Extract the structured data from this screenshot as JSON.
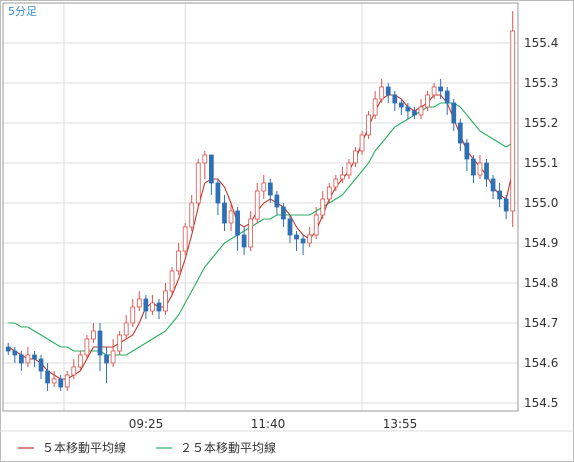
{
  "chart_data": {
    "type": "candlestick",
    "timeframe_label": "5分足",
    "x_tick_labels": [
      "09:25",
      "11:40",
      "13:55"
    ],
    "y_tick_labels": [
      "154.5",
      "154.6",
      "154.7",
      "154.8",
      "154.9",
      "155.0",
      "155.1",
      "155.2",
      "155.3",
      "155.4"
    ],
    "ylim": [
      154.48,
      155.5
    ],
    "grid": true,
    "legend_position": "bottom-left",
    "colors": {
      "up_candle": "#d9534f",
      "down_candle": "#2f6fb3",
      "ma5": "#c0392b",
      "ma25": "#27ae60",
      "grid": "#dddddd",
      "axis": "#999999"
    },
    "series": [
      {
        "name": "５本移動平均線",
        "type": "line",
        "color": "#c0392b"
      },
      {
        "name": "２５本移動平均線",
        "type": "line",
        "color": "#27ae60"
      }
    ],
    "candles": [
      [
        154.64,
        154.63,
        154.65,
        154.62
      ],
      [
        154.63,
        154.62,
        154.64,
        154.6
      ],
      [
        154.62,
        154.6,
        154.63,
        154.58
      ],
      [
        154.6,
        154.62,
        154.64,
        154.59
      ],
      [
        154.62,
        154.61,
        154.63,
        154.59
      ],
      [
        154.61,
        154.58,
        154.62,
        154.56
      ],
      [
        154.58,
        154.55,
        154.6,
        154.53
      ],
      [
        154.55,
        154.56,
        154.58,
        154.54
      ],
      [
        154.56,
        154.54,
        154.57,
        154.53
      ],
      [
        154.54,
        154.57,
        154.58,
        154.53
      ],
      [
        154.57,
        154.59,
        154.61,
        154.56
      ],
      [
        154.59,
        154.62,
        154.63,
        154.58
      ],
      [
        154.62,
        154.66,
        154.67,
        154.61
      ],
      [
        154.66,
        154.68,
        154.7,
        154.65
      ],
      [
        154.68,
        154.62,
        154.7,
        154.58
      ],
      [
        154.62,
        154.6,
        154.64,
        154.55
      ],
      [
        154.6,
        154.63,
        154.66,
        154.59
      ],
      [
        154.63,
        154.67,
        154.68,
        154.62
      ],
      [
        154.67,
        154.7,
        154.72,
        154.66
      ],
      [
        154.7,
        154.74,
        154.76,
        154.69
      ],
      [
        154.74,
        154.76,
        154.78,
        154.73
      ],
      [
        154.76,
        154.73,
        154.77,
        154.71
      ],
      [
        154.73,
        154.75,
        154.77,
        154.72
      ],
      [
        154.75,
        154.73,
        154.76,
        154.71
      ],
      [
        154.73,
        154.78,
        154.8,
        154.72
      ],
      [
        154.78,
        154.83,
        154.84,
        154.77
      ],
      [
        154.83,
        154.88,
        154.9,
        154.82
      ],
      [
        154.88,
        154.94,
        154.95,
        154.87
      ],
      [
        154.94,
        155.0,
        155.02,
        154.93
      ],
      [
        155.0,
        155.1,
        155.11,
        154.99
      ],
      [
        155.1,
        155.12,
        155.13,
        155.06
      ],
      [
        155.12,
        155.05,
        155.12,
        155.02
      ],
      [
        155.05,
        155.0,
        155.06,
        154.97
      ],
      [
        155.0,
        154.95,
        155.02,
        154.93
      ],
      [
        154.95,
        154.98,
        155.0,
        154.93
      ],
      [
        154.98,
        154.92,
        154.99,
        154.88
      ],
      [
        154.92,
        154.89,
        154.94,
        154.87
      ],
      [
        154.89,
        154.96,
        154.98,
        154.88
      ],
      [
        154.96,
        155.03,
        155.05,
        154.95
      ],
      [
        155.03,
        155.05,
        155.07,
        155.01
      ],
      [
        155.05,
        155.02,
        155.06,
        155.0
      ],
      [
        155.02,
        154.99,
        155.03,
        154.97
      ],
      [
        154.99,
        154.96,
        155.0,
        154.94
      ],
      [
        154.96,
        154.92,
        154.97,
        154.9
      ],
      [
        154.92,
        154.91,
        154.93,
        154.88
      ],
      [
        154.91,
        154.9,
        154.92,
        154.87
      ],
      [
        154.9,
        154.92,
        154.94,
        154.89
      ],
      [
        154.92,
        154.97,
        154.99,
        154.91
      ],
      [
        154.97,
        155.01,
        155.03,
        154.96
      ],
      [
        155.01,
        155.04,
        155.05,
        155.0
      ],
      [
        155.04,
        155.06,
        155.07,
        155.03
      ],
      [
        155.06,
        155.07,
        155.09,
        155.05
      ],
      [
        155.07,
        155.1,
        155.11,
        155.06
      ],
      [
        155.1,
        155.13,
        155.14,
        155.09
      ],
      [
        155.13,
        155.17,
        155.18,
        155.12
      ],
      [
        155.17,
        155.22,
        155.23,
        155.16
      ],
      [
        155.22,
        155.26,
        155.28,
        155.21
      ],
      [
        155.26,
        155.29,
        155.31,
        155.25
      ],
      [
        155.29,
        155.27,
        155.3,
        155.25
      ],
      [
        155.27,
        155.25,
        155.28,
        155.23
      ],
      [
        155.25,
        155.24,
        155.26,
        155.22
      ],
      [
        155.24,
        155.23,
        155.25,
        155.21
      ],
      [
        155.23,
        155.22,
        155.24,
        155.21
      ],
      [
        155.22,
        155.24,
        155.26,
        155.21
      ],
      [
        155.24,
        155.27,
        155.28,
        155.23
      ],
      [
        155.27,
        155.29,
        155.3,
        155.26
      ],
      [
        155.29,
        155.28,
        155.31,
        155.26
      ],
      [
        155.28,
        155.25,
        155.29,
        155.22
      ],
      [
        155.25,
        155.2,
        155.26,
        155.18
      ],
      [
        155.2,
        155.15,
        155.21,
        155.13
      ],
      [
        155.15,
        155.11,
        155.16,
        155.08
      ],
      [
        155.11,
        155.07,
        155.12,
        155.05
      ],
      [
        155.07,
        155.1,
        155.12,
        155.06
      ],
      [
        155.1,
        155.06,
        155.11,
        155.04
      ],
      [
        155.06,
        155.03,
        155.07,
        155.01
      ],
      [
        155.03,
        155.01,
        155.05,
        154.99
      ],
      [
        155.01,
        154.98,
        155.02,
        154.96
      ],
      [
        154.98,
        155.43,
        155.48,
        154.94
      ]
    ],
    "ma5": [
      154.64,
      154.63,
      154.62,
      154.61,
      154.61,
      154.6,
      154.58,
      154.57,
      154.56,
      154.56,
      154.57,
      154.58,
      154.61,
      154.64,
      154.64,
      154.64,
      154.64,
      154.65,
      154.66,
      154.67,
      154.7,
      154.74,
      154.75,
      154.74,
      154.74,
      154.77,
      154.81,
      154.86,
      154.92,
      154.99,
      155.05,
      155.06,
      155.06,
      155.04,
      155.0,
      154.95,
      154.94,
      154.95,
      154.98,
      155.0,
      155.01,
      155.0,
      154.99,
      154.97,
      154.94,
      154.92,
      154.91,
      154.93,
      154.97,
      155.01,
      155.04,
      155.06,
      155.08,
      155.11,
      155.15,
      155.19,
      155.23,
      155.26,
      155.27,
      155.27,
      155.26,
      155.24,
      155.23,
      155.24,
      155.25,
      155.27,
      155.27,
      155.25,
      155.21,
      155.17,
      155.13,
      155.11,
      155.09,
      155.07,
      155.04,
      155.02,
      155.01,
      155.08
    ],
    "ma25": [
      154.7,
      154.7,
      154.69,
      154.69,
      154.68,
      154.67,
      154.66,
      154.65,
      154.64,
      154.64,
      154.63,
      154.63,
      154.63,
      154.63,
      154.63,
      154.62,
      154.62,
      154.62,
      154.62,
      154.63,
      154.64,
      154.65,
      154.66,
      154.67,
      154.68,
      154.7,
      154.72,
      154.75,
      154.78,
      154.81,
      154.84,
      154.86,
      154.88,
      154.9,
      154.91,
      154.92,
      154.93,
      154.94,
      154.95,
      154.96,
      154.96,
      154.97,
      154.97,
      154.97,
      154.97,
      154.97,
      154.97,
      154.98,
      154.99,
      155.0,
      155.01,
      155.02,
      155.04,
      155.06,
      155.08,
      155.1,
      155.13,
      155.15,
      155.17,
      155.19,
      155.2,
      155.21,
      155.22,
      155.23,
      155.24,
      155.24,
      155.25,
      155.25,
      155.25,
      155.24,
      155.22,
      155.2,
      155.18,
      155.17,
      155.16,
      155.15,
      155.14,
      155.15
    ]
  }
}
